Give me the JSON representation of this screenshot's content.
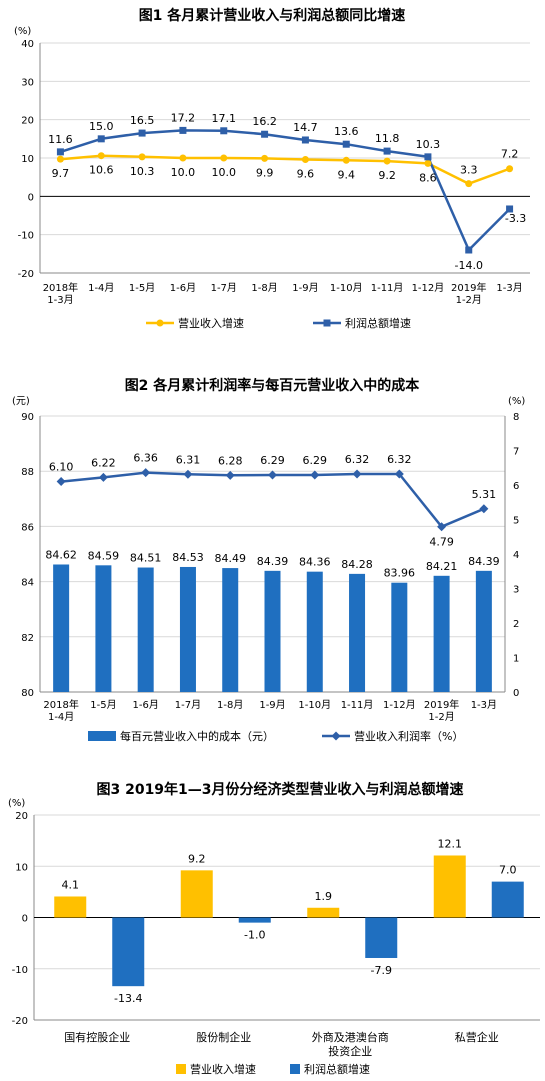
{
  "chart_data": [
    {
      "type": "line",
      "title": "图1  各月累计营业收入与利润总额同比增速",
      "y_unit": "(%)",
      "ylim": [
        -20,
        40
      ],
      "yticks": [
        -20,
        -10,
        0,
        10,
        20,
        30,
        40
      ],
      "categories": [
        [
          "2018年",
          "1-3月"
        ],
        [
          "1-4月"
        ],
        [
          "1-5月"
        ],
        [
          "1-6月"
        ],
        [
          "1-7月"
        ],
        [
          "1-8月"
        ],
        [
          "1-9月"
        ],
        [
          "1-10月"
        ],
        [
          "1-11月"
        ],
        [
          "1-12月"
        ],
        [
          "2019年",
          "1-2月"
        ],
        [
          "1-3月"
        ]
      ],
      "series": [
        {
          "name": "营业收入增速",
          "color": "#FFC000",
          "marker": "circle",
          "values": [
            9.7,
            10.6,
            10.3,
            10.0,
            10.0,
            9.9,
            9.6,
            9.4,
            9.2,
            8.6,
            3.3,
            7.2
          ],
          "labels": [
            "9.7",
            "10.6",
            "10.3",
            "10.0",
            "10.0",
            "9.9",
            "9.6",
            "9.4",
            "9.2",
            "8.6",
            "3.3",
            "7.2"
          ]
        },
        {
          "name": "利润总额增速",
          "color": "#2E5FA8",
          "marker": "square",
          "values": [
            11.6,
            15.0,
            16.5,
            17.2,
            17.1,
            16.2,
            14.7,
            13.6,
            11.8,
            10.3,
            -14.0,
            -3.3
          ],
          "labels": [
            "11.6",
            "15.0",
            "16.5",
            "17.2",
            "17.1",
            "16.2",
            "14.7",
            "13.6",
            "11.8",
            "10.3",
            "-14.0",
            "-3.3"
          ]
        }
      ],
      "legend_position": "bottom"
    },
    {
      "type": "bar",
      "title": "图2  各月累计利润率与每百元营业收入中的成本",
      "y_unit_left": "(元)",
      "y_unit_right": "(%)",
      "ylim_left": [
        80,
        90
      ],
      "yticks_left": [
        80,
        82,
        84,
        86,
        88,
        90
      ],
      "ylim_right": [
        0,
        8
      ],
      "yticks_right": [
        0,
        1,
        2,
        3,
        4,
        5,
        6,
        7,
        8
      ],
      "categories": [
        [
          "2018年",
          "1-4月"
        ],
        [
          "1-5月"
        ],
        [
          "1-6月"
        ],
        [
          "1-7月"
        ],
        [
          "1-8月"
        ],
        [
          "1-9月"
        ],
        [
          "1-10月"
        ],
        [
          "1-11月"
        ],
        [
          "1-12月"
        ],
        [
          "2019年",
          "1-2月"
        ],
        [
          "1-3月"
        ]
      ],
      "bar_series": {
        "name": "每百元营业收入中的成本（元）",
        "color": "#1F6FC0",
        "values": [
          84.62,
          84.59,
          84.51,
          84.53,
          84.49,
          84.39,
          84.36,
          84.28,
          83.96,
          84.21,
          84.39
        ],
        "labels": [
          "84.62",
          "84.59",
          "84.51",
          "84.53",
          "84.49",
          "84.39",
          "84.36",
          "84.28",
          "83.96",
          "84.21",
          "84.39"
        ]
      },
      "line_series": {
        "name": "营业收入利润率（%）",
        "color": "#2E5FA8",
        "marker": "diamond",
        "values": [
          6.1,
          6.22,
          6.36,
          6.31,
          6.28,
          6.29,
          6.29,
          6.32,
          6.32,
          4.79,
          5.31
        ],
        "labels": [
          "6.10",
          "6.22",
          "6.36",
          "6.31",
          "6.28",
          "6.29",
          "6.29",
          "6.32",
          "6.32",
          "4.79",
          "5.31"
        ]
      },
      "legend_position": "bottom"
    },
    {
      "type": "bar",
      "title": "图3  2019年1—3月份分经济类型营业收入与利润总额增速",
      "y_unit": "(%)",
      "ylim": [
        -20,
        20
      ],
      "yticks": [
        -20,
        -10,
        0,
        10,
        20
      ],
      "categories": [
        [
          "国有控股企业"
        ],
        [
          "股份制企业"
        ],
        [
          "外商及港澳台商",
          "投资企业"
        ],
        [
          "私营企业"
        ]
      ],
      "series": [
        {
          "name": "营业收入增速",
          "color": "#FFC000",
          "values": [
            4.1,
            9.2,
            1.9,
            12.1
          ],
          "labels": [
            "4.1",
            "9.2",
            "1.9",
            "12.1"
          ]
        },
        {
          "name": "利润总额增速",
          "color": "#1F6FC0",
          "values": [
            -13.4,
            -1.0,
            -7.9,
            7.0
          ],
          "labels": [
            "-13.4",
            "-1.0",
            "-7.9",
            "7.0"
          ]
        }
      ],
      "legend_position": "bottom"
    }
  ]
}
